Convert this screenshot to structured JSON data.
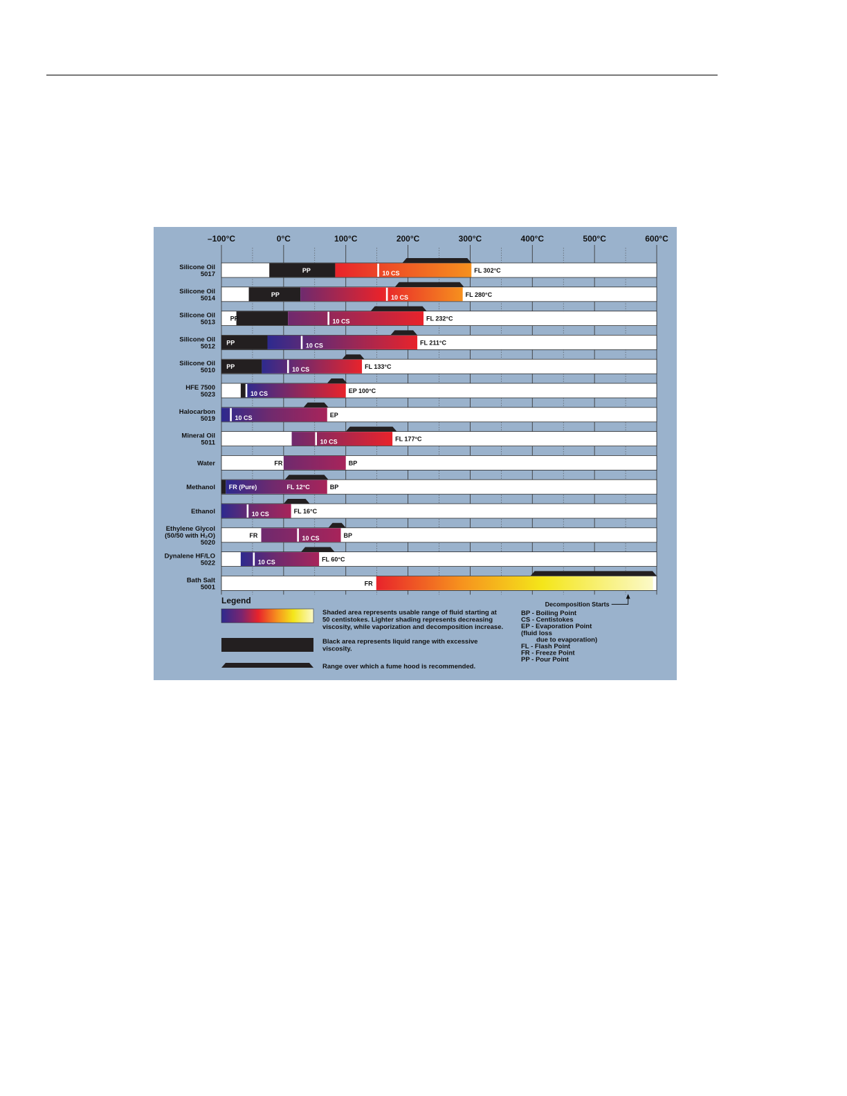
{
  "chart_data": {
    "type": "range-bar",
    "x_axis": {
      "unit": "°C",
      "range": [
        -100,
        600
      ],
      "ticks": [
        -100,
        0,
        100,
        200,
        300,
        400,
        500,
        600
      ],
      "tick_labels": [
        "–100°C",
        "0°C",
        "100°C",
        "200°C",
        "300°C",
        "400°C",
        "500°C",
        "600°C"
      ]
    },
    "colors": {
      "panel": "#9ab2cc",
      "black_range": "#231f20",
      "blue": "#2d2a8e",
      "purple": "#6e2a6e",
      "magenta": "#a8245a",
      "red": "#e8232b",
      "orange": "#f6901e",
      "yellow": "#f4e61a",
      "cream": "#fbf9c8"
    },
    "rows": [
      {
        "name_lines": [
          "Silicone Oil",
          "5017"
        ],
        "low_label": "PP",
        "low_label_at": 30,
        "black_range": [
          -23,
          83
        ],
        "shaded_range": [
          83,
          302
        ],
        "gradient": "red-orange",
        "cs_marker": 152,
        "cs_label": "10 CS",
        "high_label": "FL 302°C",
        "fume_hood": [
          191,
          302
        ]
      },
      {
        "name_lines": [
          "Silicone Oil",
          "5014"
        ],
        "low_label": "PP",
        "low_label_at": -20,
        "black_range": [
          -56,
          27
        ],
        "shaded_range": [
          27,
          288
        ],
        "gradient": "purple-red-orange",
        "cs_marker": 166,
        "cs_label": "10 CS",
        "high_label": "FL 280°C",
        "fume_hood": [
          179,
          290
        ]
      },
      {
        "name_lines": [
          "Silicone Oil",
          "5013"
        ],
        "low_label": "PP",
        "low_label_at": -86,
        "black_range": [
          -76,
          7
        ],
        "shaded_range": [
          7,
          225
        ],
        "gradient": "purple-red",
        "cs_marker": 72,
        "cs_label": "10 CS",
        "high_label": "FL 232°C",
        "fume_hood": [
          140,
          230
        ]
      },
      {
        "name_lines": [
          "Silicone Oil",
          "5012"
        ],
        "low_label": "PP",
        "low_label_at": -92,
        "black_range": [
          -100,
          -26
        ],
        "shaded_range": [
          -26,
          215
        ],
        "gradient": "blue-purple-red",
        "cs_marker": 29,
        "cs_label": "10 CS",
        "high_label": "FL 211°C",
        "fume_hood": [
          172,
          215
        ]
      },
      {
        "name_lines": [
          "Silicone Oil",
          "5010"
        ],
        "low_label": "PP",
        "low_label_at": -92,
        "black_range": [
          -100,
          -35
        ],
        "shaded_range": [
          -35,
          126
        ],
        "gradient": "blue-purple-red",
        "cs_marker": 7,
        "cs_label": "10 CS",
        "high_label": "FL 133°C",
        "fume_hood": [
          94,
          130
        ]
      },
      {
        "name_lines": [
          "HFE 7500",
          "5023"
        ],
        "low_label": "",
        "black_range": [
          -69,
          -61
        ],
        "shaded_range": [
          -61,
          100
        ],
        "gradient": "blue-purple-red",
        "cs_marker": -60,
        "cs_label": "10 CS",
        "high_label": "EP 100°C",
        "fume_hood": [
          70,
          102
        ]
      },
      {
        "name_lines": [
          "Halocarbon",
          "5019"
        ],
        "low_label": "",
        "black_range": [],
        "shaded_range": [
          -100,
          70
        ],
        "gradient": "blue-purple-magenta",
        "cs_marker": -85,
        "cs_label": "10 CS",
        "high_label": "EP",
        "fume_hood": [
          32,
          72
        ]
      },
      {
        "name_lines": [
          "Mineral Oil",
          "5011"
        ],
        "low_label": "",
        "black_range": [],
        "shaded_range": [
          13,
          175
        ],
        "gradient": "purple-red",
        "cs_marker": 52,
        "cs_label": "10 CS",
        "high_label": "FL 177°C",
        "fume_hood": [
          100,
          182
        ]
      },
      {
        "name_lines": [
          "Water"
        ],
        "low_label": "FR",
        "low_label_at": -15,
        "black_range": [],
        "shaded_range": [
          0,
          100
        ],
        "gradient": "purple-magenta",
        "cs_marker": null,
        "cs_label": "",
        "high_label": "BP",
        "fume_hood": []
      },
      {
        "name_lines": [
          "Methanol"
        ],
        "low_label": "FR (Pure)",
        "low_label_at": -88,
        "black_range": [
          -100,
          -93
        ],
        "shaded_range": [
          -93,
          70
        ],
        "gradient": "blue-purple-magenta",
        "cs_marker": null,
        "cs_label": "",
        "mid_label": "FL 12°C",
        "mid_label_at": 5,
        "high_label": "BP",
        "fume_hood": [
          2,
          72
        ]
      },
      {
        "name_lines": [
          "Ethanol"
        ],
        "low_label": "",
        "black_range": [],
        "shaded_range": [
          -100,
          12
        ],
        "gradient": "blue-purple-magenta",
        "cs_marker": -58,
        "cs_label": "10 CS",
        "high_label": "FL 16°C",
        "fume_hood": [
          0,
          42
        ]
      },
      {
        "name_lines": [
          "Ethylene Glycol",
          "(50/50 with H₂O)",
          "5020"
        ],
        "low_label": "FR",
        "low_label_at": -55,
        "black_range": [],
        "shaded_range": [
          -36,
          92
        ],
        "gradient": "purple-magenta",
        "cs_marker": 23,
        "cs_label": "10 CS",
        "high_label": "BP",
        "fume_hood": [
          72,
          100
        ]
      },
      {
        "name_lines": [
          "Dynalene HF/LO",
          "5022"
        ],
        "low_label": "",
        "black_range": [],
        "shaded_range": [
          -69,
          57
        ],
        "gradient": "blue-purple-magenta",
        "cs_marker": -48,
        "cs_label": "10 CS",
        "high_label": "FL 60°C",
        "fume_hood": [
          28,
          82
        ]
      },
      {
        "name_lines": [
          "Bath Salt",
          "5001"
        ],
        "low_label": "FR",
        "low_label_at": 130,
        "black_range": [],
        "shaded_range": [
          149,
          594
        ],
        "gradient": "red-orange-yellow-cream",
        "cs_marker": null,
        "cs_label": "",
        "high_label": "",
        "fume_hood": [
          397,
          600
        ]
      }
    ],
    "annotation": "Decomposition Starts",
    "annotation_at": 554,
    "legend": {
      "title": "Legend",
      "items": [
        {
          "swatch": "gradient",
          "lines": [
            "Shaded area represents usable range of fluid starting at",
            "50 centistokes. Lighter shading represents decreasing",
            "viscosity, while vaporization and decomposition increase."
          ]
        },
        {
          "swatch": "black",
          "lines": [
            "Black  area represents liquid range with excessive",
            "viscosity."
          ]
        },
        {
          "swatch": "fume",
          "lines": [
            "Range over which a fume hood is recommended."
          ]
        }
      ],
      "abbreviations": [
        "BP - Boiling Point",
        "CS - Centistokes",
        "EP - Evaporation Point",
        "(fluid loss",
        "due to evaporation)",
        "FL - Flash Point",
        "FR - Freeze Point",
        "PP - Pour Point"
      ]
    }
  }
}
